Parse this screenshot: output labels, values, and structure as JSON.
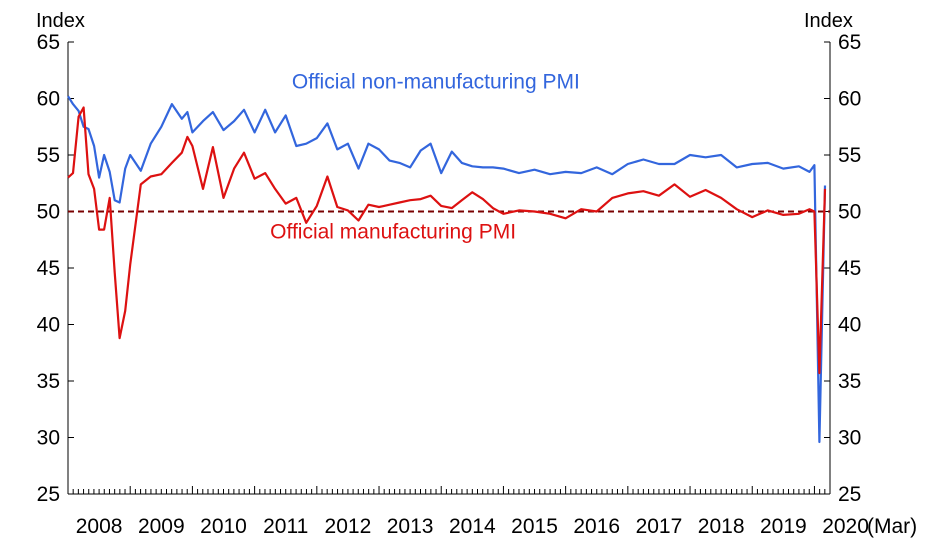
{
  "chart_data": {
    "type": "line",
    "left_axis_label": "Index",
    "right_axis_label": "Index",
    "ylim": [
      25,
      65
    ],
    "yticks": [
      25,
      30,
      35,
      40,
      45,
      50,
      55,
      60,
      65
    ],
    "xlim": [
      2008.0,
      2020.25
    ],
    "xtick_labels": [
      "2008",
      "2009",
      "2010",
      "2011",
      "2012",
      "2013",
      "2014",
      "2015",
      "2016",
      "2017",
      "2018",
      "2019",
      "2020"
    ],
    "x_suffix_label": "(Mar)",
    "reference_line": {
      "y": 50,
      "style": "dashed",
      "color": "#7a0000"
    },
    "grid": false,
    "series": [
      {
        "name": "Official non-manufacturing PMI",
        "color": "#3366dd",
        "x": [
          2008.0,
          2008.08,
          2008.17,
          2008.25,
          2008.33,
          2008.42,
          2008.5,
          2008.58,
          2008.67,
          2008.75,
          2008.83,
          2008.92,
          2009.0,
          2009.17,
          2009.33,
          2009.5,
          2009.67,
          2009.83,
          2009.92,
          2010.0,
          2010.17,
          2010.33,
          2010.5,
          2010.67,
          2010.83,
          2011.0,
          2011.17,
          2011.33,
          2011.5,
          2011.67,
          2011.83,
          2012.0,
          2012.17,
          2012.33,
          2012.5,
          2012.67,
          2012.83,
          2013.0,
          2013.17,
          2013.33,
          2013.5,
          2013.67,
          2013.83,
          2014.0,
          2014.17,
          2014.33,
          2014.5,
          2014.67,
          2014.83,
          2015.0,
          2015.25,
          2015.5,
          2015.75,
          2016.0,
          2016.25,
          2016.5,
          2016.75,
          2017.0,
          2017.25,
          2017.5,
          2017.75,
          2018.0,
          2018.25,
          2018.5,
          2018.75,
          2019.0,
          2019.25,
          2019.5,
          2019.75,
          2019.92,
          2020.0,
          2020.08,
          2020.17
        ],
        "values": [
          60.2,
          59.5,
          58.9,
          57.5,
          57.3,
          55.8,
          53.0,
          55.0,
          53.5,
          51.0,
          50.8,
          53.8,
          55.0,
          53.6,
          56.0,
          57.5,
          59.5,
          58.2,
          58.8,
          57.0,
          58.0,
          58.8,
          57.2,
          58.0,
          59.0,
          57.0,
          59.0,
          57.0,
          58.5,
          55.8,
          56.0,
          56.5,
          57.8,
          55.5,
          56.0,
          53.8,
          56.0,
          55.5,
          54.5,
          54.3,
          53.9,
          55.4,
          56.0,
          53.4,
          55.3,
          54.3,
          54.0,
          53.9,
          53.9,
          53.8,
          53.4,
          53.7,
          53.3,
          53.5,
          53.4,
          53.9,
          53.3,
          54.2,
          54.6,
          54.2,
          54.2,
          55.0,
          54.8,
          55.0,
          53.9,
          54.2,
          54.3,
          53.8,
          54.0,
          53.5,
          54.1,
          29.6,
          52.3
        ]
      },
      {
        "name": "Official manufacturing PMI",
        "color": "#dd1111",
        "x": [
          2008.0,
          2008.08,
          2008.17,
          2008.25,
          2008.33,
          2008.42,
          2008.5,
          2008.58,
          2008.67,
          2008.75,
          2008.83,
          2008.92,
          2009.0,
          2009.17,
          2009.33,
          2009.5,
          2009.67,
          2009.83,
          2009.92,
          2010.0,
          2010.17,
          2010.33,
          2010.5,
          2010.67,
          2010.83,
          2011.0,
          2011.17,
          2011.33,
          2011.5,
          2011.67,
          2011.83,
          2012.0,
          2012.17,
          2012.33,
          2012.5,
          2012.67,
          2012.83,
          2013.0,
          2013.17,
          2013.33,
          2013.5,
          2013.67,
          2013.83,
          2014.0,
          2014.17,
          2014.33,
          2014.5,
          2014.67,
          2014.83,
          2015.0,
          2015.25,
          2015.5,
          2015.75,
          2016.0,
          2016.25,
          2016.5,
          2016.75,
          2017.0,
          2017.25,
          2017.5,
          2017.75,
          2018.0,
          2018.25,
          2018.5,
          2018.75,
          2019.0,
          2019.25,
          2019.5,
          2019.75,
          2019.92,
          2020.0,
          2020.08,
          2020.17
        ],
        "values": [
          53.0,
          53.4,
          58.4,
          59.2,
          53.3,
          52.0,
          48.4,
          48.4,
          51.2,
          44.6,
          38.8,
          41.2,
          45.3,
          52.4,
          53.1,
          53.3,
          54.3,
          55.2,
          56.6,
          55.8,
          52.0,
          55.7,
          51.2,
          53.8,
          55.2,
          52.9,
          53.4,
          52.0,
          50.7,
          51.2,
          49.0,
          50.5,
          53.1,
          50.4,
          50.1,
          49.2,
          50.6,
          50.4,
          50.6,
          50.8,
          51.0,
          51.1,
          51.4,
          50.5,
          50.3,
          51.0,
          51.7,
          51.1,
          50.3,
          49.8,
          50.1,
          50.0,
          49.8,
          49.4,
          50.2,
          50.0,
          51.2,
          51.6,
          51.8,
          51.4,
          52.4,
          51.3,
          51.9,
          51.2,
          50.2,
          49.5,
          50.1,
          49.7,
          49.8,
          50.2,
          50.0,
          35.7,
          52.0
        ]
      }
    ],
    "annotations": [
      {
        "text": "Official non-manufacturing PMI",
        "color": "#3366dd",
        "at_x": 2011.6,
        "at_y": 60.9
      },
      {
        "text": "Official manufacturing PMI",
        "color": "#dd1111",
        "at_x": 2011.25,
        "at_y": 47.6
      }
    ]
  }
}
